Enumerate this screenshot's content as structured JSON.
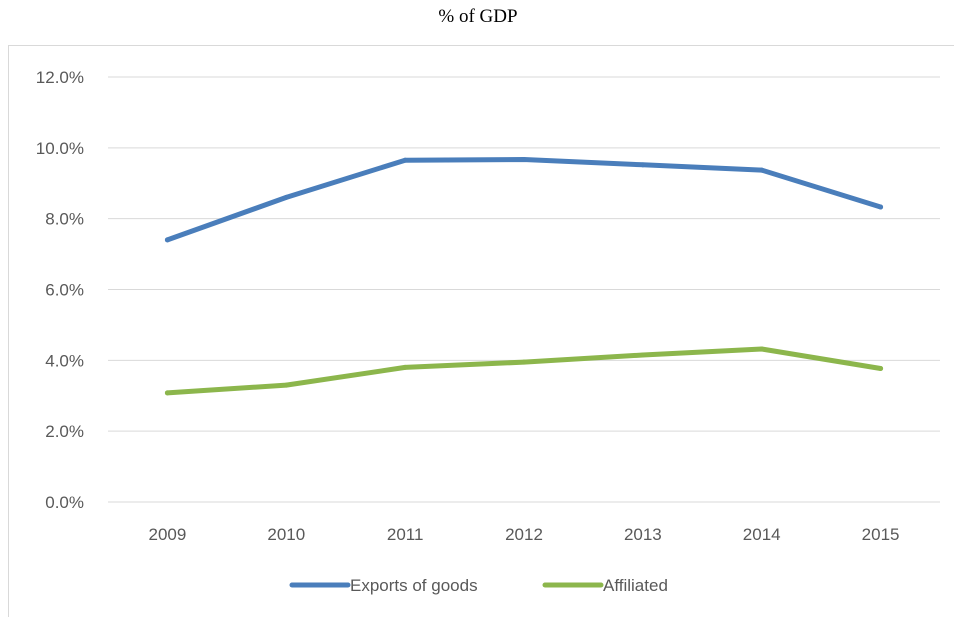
{
  "title": "% of GDP",
  "chart_data": {
    "type": "line",
    "title": "% of GDP",
    "categories": [
      "2009",
      "2010",
      "2011",
      "2012",
      "2013",
      "2014",
      "2015"
    ],
    "series": [
      {
        "name": "Exports of goods",
        "color": "#4a7ebb",
        "values": [
          7.4,
          8.6,
          9.65,
          9.67,
          9.52,
          9.37,
          8.33
        ]
      },
      {
        "name": "Affiliated",
        "color": "#8cb64c",
        "values": [
          3.08,
          3.3,
          3.8,
          3.95,
          4.15,
          4.32,
          3.77
        ]
      }
    ],
    "ylim": [
      0,
      12
    ],
    "yticks": [
      "0.0%",
      "2.0%",
      "4.0%",
      "6.0%",
      "8.0%",
      "10.0%",
      "12.0%"
    ],
    "grid": true,
    "legend_position": "bottom"
  }
}
